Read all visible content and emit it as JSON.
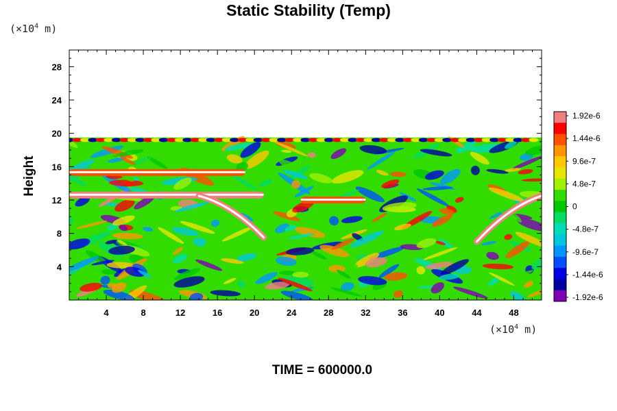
{
  "chart_data": {
    "type": "heatmap",
    "title": "Static Stability (Temp)",
    "xlabel": "",
    "ylabel": "Height",
    "x_unit_prefix": "(×10",
    "x_unit_exp": "4",
    "x_unit_suffix": " m)",
    "y_unit_prefix": "(×10",
    "y_unit_exp": "4",
    "y_unit_suffix": " m)",
    "xlim": [
      0,
      51
    ],
    "ylim": [
      0,
      30
    ],
    "x_ticks": [
      "4",
      "8",
      "12",
      "16",
      "20",
      "24",
      "28",
      "32",
      "36",
      "40",
      "44",
      "48"
    ],
    "y_ticks": [
      "4",
      "8",
      "12",
      "16",
      "20",
      "24",
      "28"
    ],
    "colorbar": {
      "min": -1.92e-06,
      "max": 1.92e-06,
      "labels": [
        "1.92e-6",
        "1.44e-6",
        "9.6e-7",
        "4.8e-7",
        "0",
        "-4.8e-7",
        "-9.6e-7",
        "-1.44e-6",
        "-1.92e-6"
      ],
      "colors": [
        "#f08080",
        "#ff0000",
        "#ff5000",
        "#ff9600",
        "#ffc800",
        "#e6e600",
        "#a0f000",
        "#32dc00",
        "#00c800",
        "#00dc64",
        "#00dcb4",
        "#00c8dc",
        "#0096ff",
        "#0050ff",
        "#0000e6",
        "#0000a0",
        "#8000b4"
      ]
    },
    "field_top": 19.5,
    "features": [
      {
        "name": "upper stable band",
        "x": [
          0,
          19
        ],
        "y": 15.3,
        "value": 1.44e-06
      },
      {
        "name": "lower stable band",
        "x": [
          0,
          21
        ],
        "y": 12.6,
        "value": 1.92e-06
      },
      {
        "name": "tilted front left",
        "x": [
          14,
          21
        ],
        "y": [
          12.5,
          7.5
        ],
        "value": 1.92e-06
      },
      {
        "name": "tilted front right",
        "x": [
          44,
          51
        ],
        "y": [
          7,
          12.5
        ],
        "value": 1.92e-06
      },
      {
        "name": "mid stable band",
        "x": [
          25,
          32
        ],
        "y": 12,
        "value": 1.44e-06
      }
    ],
    "background_value": 2e-07
  },
  "time_label": "TIME = 600000.0"
}
